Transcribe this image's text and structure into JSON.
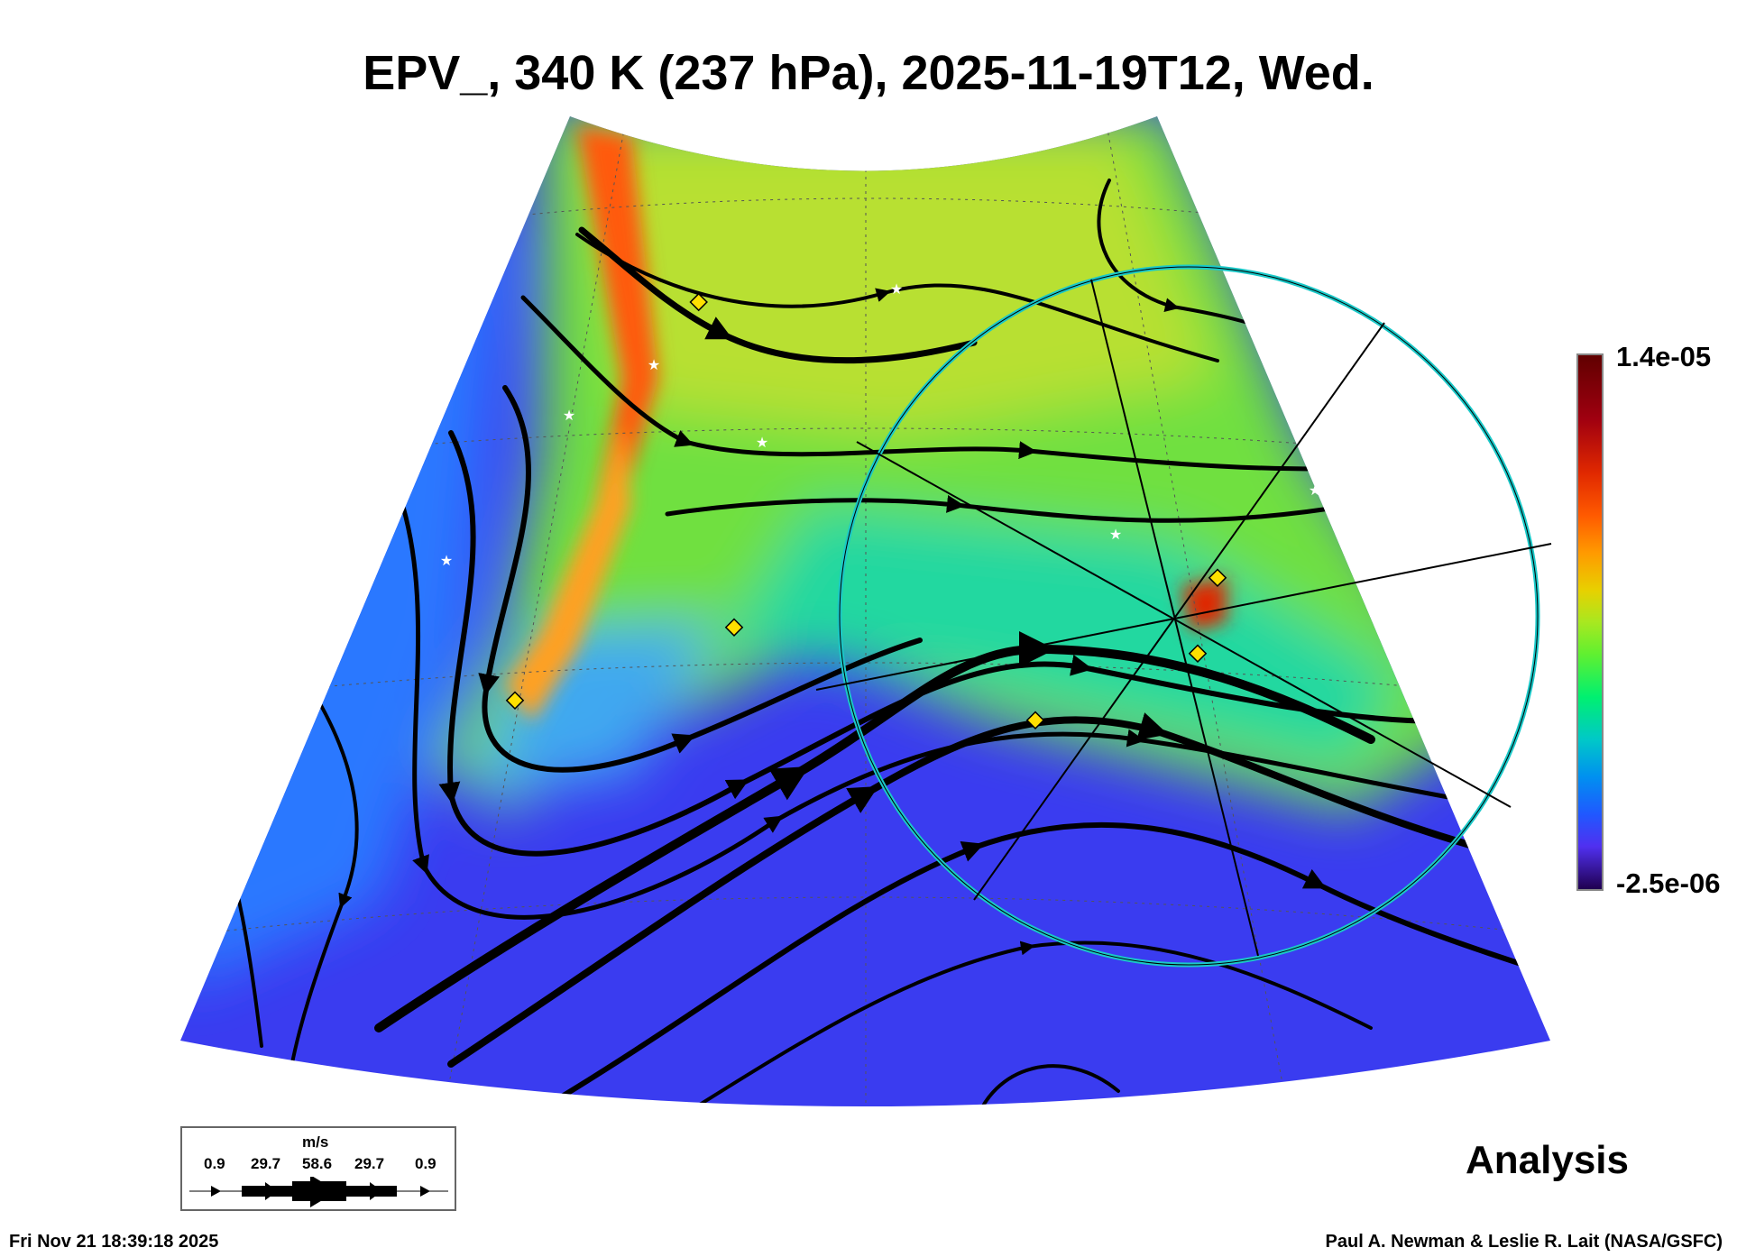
{
  "title": "EPV_, 340 K (237 hPa), 2025-11-19T12, Wed.",
  "colorbar": {
    "max_label": "1.4e-05",
    "min_label": "-2.5e-06",
    "colors": [
      "#600000",
      "#e02800",
      "#ff9a00",
      "#a8e820",
      "#00f070",
      "#0090f0",
      "#5030f0",
      "#200050"
    ]
  },
  "wind_legend": {
    "unit": "m/s",
    "values": [
      "0.9",
      "29.7",
      "58.6",
      "29.7",
      "0.9"
    ]
  },
  "analysis_label": "Analysis",
  "footer": {
    "timestamp": "Fri Nov 21 18:39:18 2025",
    "credit": "Paul A. Newman & Leslie R. Lait (NASA/GSFC)"
  }
}
